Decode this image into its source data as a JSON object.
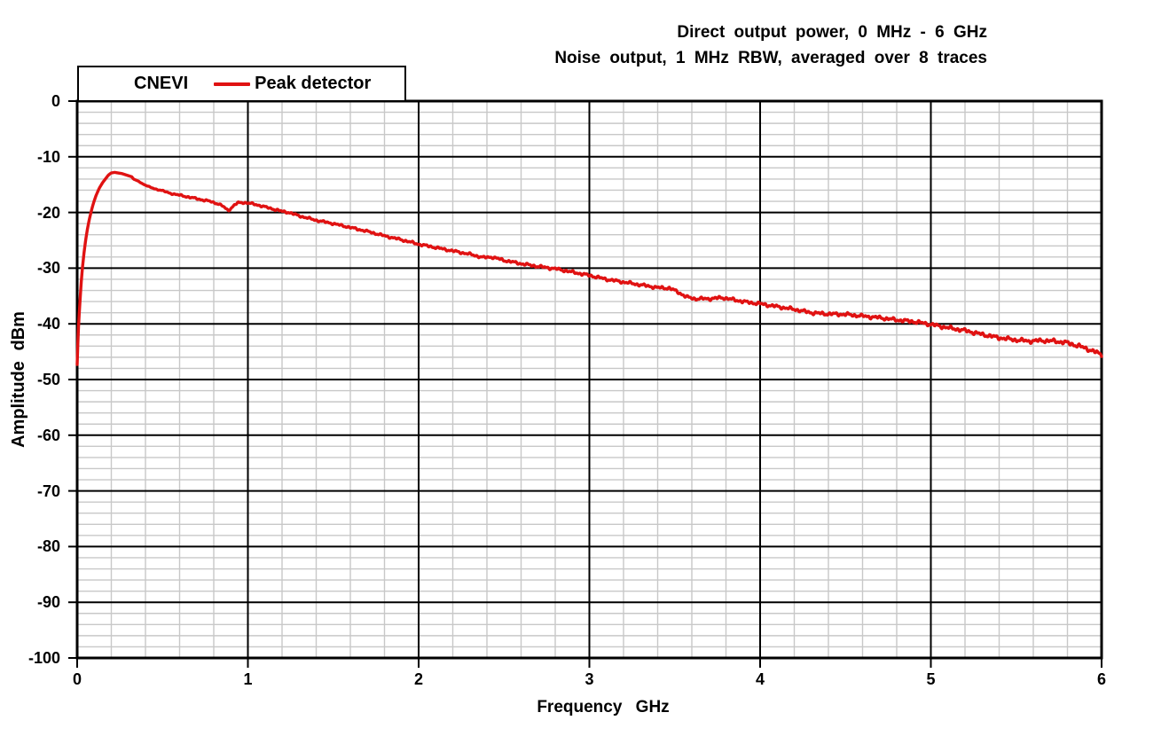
{
  "header": {
    "line1": "Direct output power, 0 MHz - 6 GHz",
    "line2": "Noise output, 1 MHz RBW, averaged over 8 traces"
  },
  "legend": {
    "device_label": "CNEVI",
    "series_label": "Peak detector"
  },
  "colors": {
    "trace": "#E01212",
    "major_grid": "#000000",
    "minor_grid": "#C8C8C8",
    "axis_border": "#000000",
    "background": "#FFFFFF"
  },
  "chart_data": {
    "type": "line",
    "title_lines": [
      "Direct output power, 0 MHz - 6 GHz",
      "Noise output, 1 MHz RBW, averaged over 8 traces"
    ],
    "xlabel": "Frequency GHz",
    "ylabel": "Amplitude dBm",
    "xlim": [
      0,
      6
    ],
    "ylim": [
      -100,
      0
    ],
    "x_major_ticks": [
      0,
      1,
      2,
      3,
      4,
      5,
      6
    ],
    "y_major_ticks": [
      0,
      -10,
      -20,
      -30,
      -40,
      -50,
      -60,
      -70,
      -80,
      -90,
      -100
    ],
    "x_minor_step": 0.2,
    "y_minor_step": 2,
    "grid": "major+minor",
    "legend_position": "top-left",
    "series": [
      {
        "name": "Peak detector",
        "device": "CNEVI",
        "color": "#E01212",
        "points": [
          [
            0.0,
            -47.3
          ],
          [
            0.002,
            -45.5
          ],
          [
            0.004,
            -43.5
          ],
          [
            0.008,
            -40.5
          ],
          [
            0.012,
            -38.2
          ],
          [
            0.018,
            -35.2
          ],
          [
            0.025,
            -32.0
          ],
          [
            0.032,
            -29.6
          ],
          [
            0.04,
            -27.3
          ],
          [
            0.05,
            -24.9
          ],
          [
            0.06,
            -23.0
          ],
          [
            0.07,
            -21.4
          ],
          [
            0.08,
            -20.1
          ],
          [
            0.09,
            -18.9
          ],
          [
            0.1,
            -17.9
          ],
          [
            0.11,
            -17.0
          ],
          [
            0.12,
            -16.3
          ],
          [
            0.13,
            -15.6
          ],
          [
            0.14,
            -15.1
          ],
          [
            0.15,
            -14.6
          ],
          [
            0.16,
            -14.2
          ],
          [
            0.17,
            -13.8
          ],
          [
            0.18,
            -13.4
          ],
          [
            0.19,
            -13.1
          ],
          [
            0.2,
            -12.9
          ],
          [
            0.22,
            -12.8
          ],
          [
            0.24,
            -12.9
          ],
          [
            0.26,
            -13.0
          ],
          [
            0.28,
            -13.2
          ],
          [
            0.3,
            -13.4
          ],
          [
            0.32,
            -13.6
          ],
          [
            0.33,
            -14.0
          ],
          [
            0.34,
            -14.15
          ],
          [
            0.36,
            -14.4
          ],
          [
            0.38,
            -14.8
          ],
          [
            0.4,
            -15.1
          ],
          [
            0.43,
            -15.5
          ],
          [
            0.46,
            -15.8
          ],
          [
            0.5,
            -16.1
          ],
          [
            0.54,
            -16.5
          ],
          [
            0.58,
            -16.8
          ],
          [
            0.62,
            -17.0
          ],
          [
            0.66,
            -17.3
          ],
          [
            0.7,
            -17.5
          ],
          [
            0.74,
            -17.8
          ],
          [
            0.78,
            -18.0
          ],
          [
            0.82,
            -18.4
          ],
          [
            0.85,
            -18.8
          ],
          [
            0.87,
            -19.3
          ],
          [
            0.885,
            -19.6
          ],
          [
            0.9,
            -19.3
          ],
          [
            0.92,
            -18.7
          ],
          [
            0.94,
            -18.3
          ],
          [
            0.96,
            -18.2
          ],
          [
            1.0,
            -18.3
          ],
          [
            1.05,
            -18.6
          ],
          [
            1.1,
            -19.0
          ],
          [
            1.15,
            -19.4
          ],
          [
            1.2,
            -19.8
          ],
          [
            1.24,
            -20.0
          ],
          [
            1.3,
            -20.6
          ],
          [
            1.4,
            -21.4
          ],
          [
            1.5,
            -22.0
          ],
          [
            1.6,
            -22.7
          ],
          [
            1.7,
            -23.4
          ],
          [
            1.8,
            -24.2
          ],
          [
            1.9,
            -24.9
          ],
          [
            2.0,
            -25.7
          ],
          [
            2.1,
            -26.3
          ],
          [
            2.2,
            -26.9
          ],
          [
            2.3,
            -27.5
          ],
          [
            2.38,
            -28.1
          ],
          [
            2.43,
            -28.0
          ],
          [
            2.5,
            -28.6
          ],
          [
            2.6,
            -29.2
          ],
          [
            2.7,
            -29.7
          ],
          [
            2.8,
            -30.1
          ],
          [
            2.9,
            -30.7
          ],
          [
            3.0,
            -31.3
          ],
          [
            3.1,
            -32.0
          ],
          [
            3.2,
            -32.5
          ],
          [
            3.3,
            -33.0
          ],
          [
            3.4,
            -33.5
          ],
          [
            3.47,
            -33.6
          ],
          [
            3.52,
            -34.3
          ],
          [
            3.57,
            -35.2
          ],
          [
            3.62,
            -35.5
          ],
          [
            3.7,
            -35.5
          ],
          [
            3.78,
            -35.3
          ],
          [
            3.85,
            -35.7
          ],
          [
            3.92,
            -36.1
          ],
          [
            4.0,
            -36.4
          ],
          [
            4.1,
            -36.9
          ],
          [
            4.2,
            -37.4
          ],
          [
            4.3,
            -38.0
          ],
          [
            4.38,
            -38.2
          ],
          [
            4.5,
            -38.3
          ],
          [
            4.6,
            -38.6
          ],
          [
            4.7,
            -38.9
          ],
          [
            4.8,
            -39.3
          ],
          [
            4.9,
            -39.6
          ],
          [
            5.0,
            -40.1
          ],
          [
            5.1,
            -40.7
          ],
          [
            5.2,
            -41.2
          ],
          [
            5.3,
            -41.9
          ],
          [
            5.4,
            -42.5
          ],
          [
            5.5,
            -42.9
          ],
          [
            5.58,
            -43.1
          ],
          [
            5.65,
            -43.0
          ],
          [
            5.72,
            -43.1
          ],
          [
            5.8,
            -43.4
          ],
          [
            5.9,
            -44.3
          ],
          [
            5.95,
            -44.9
          ],
          [
            6.0,
            -45.5
          ]
        ]
      }
    ]
  }
}
